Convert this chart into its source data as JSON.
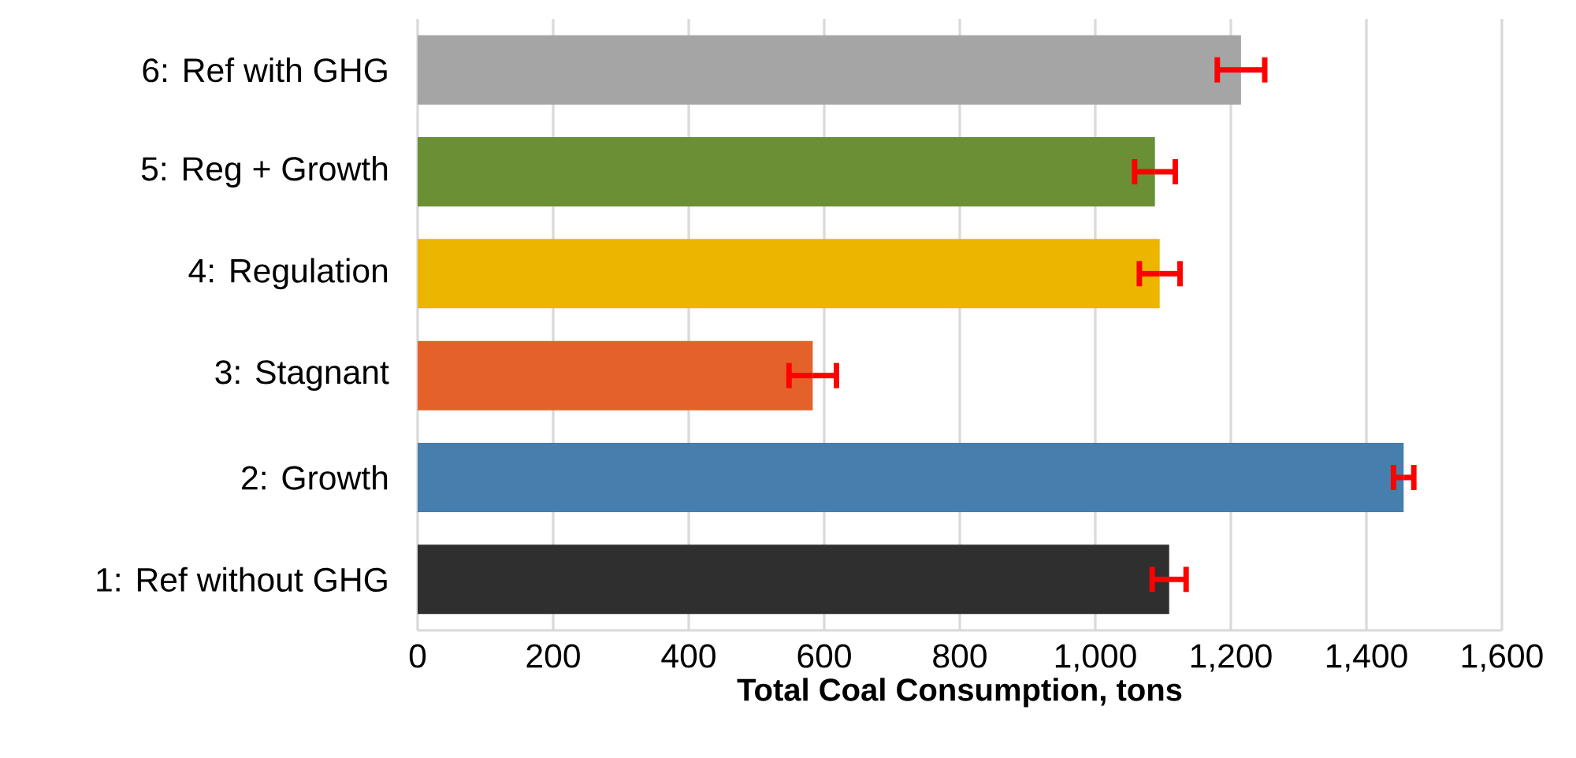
{
  "chart_data": {
    "type": "bar",
    "orientation": "horizontal",
    "xlabel": "Total Coal Consumption, tons",
    "categories": [
      "6: Ref with GHG",
      "5: Reg + Growth",
      "4: Regulation",
      "3: Stagnant",
      "2: Growth",
      "1: Ref without GHG"
    ],
    "values": [
      1215,
      1088,
      1095,
      583,
      1455,
      1109
    ],
    "errors": [
      35,
      30,
      30,
      35,
      15,
      25
    ],
    "colors": [
      "#a5a5a5",
      "#6a8f35",
      "#ebb500",
      "#e4622a",
      "#467eae",
      "#2f2f2f"
    ],
    "xlim": [
      0,
      1600
    ],
    "xticks": [
      0,
      200,
      400,
      600,
      800,
      {
        "value": 1000,
        "label": "1,000"
      },
      {
        "value": 1200,
        "label": "1,200"
      },
      {
        "value": 1400,
        "label": "1,400"
      },
      {
        "value": 1600,
        "label": "1,600"
      }
    ],
    "grid": "x"
  }
}
